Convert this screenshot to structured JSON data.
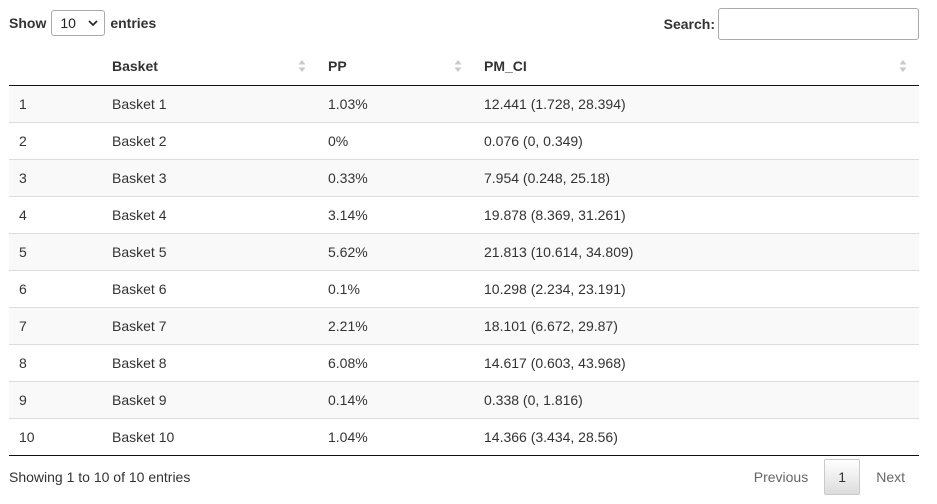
{
  "length_control": {
    "show_label": "Show",
    "selected": "10",
    "entries_label": "entries"
  },
  "search": {
    "label": "Search:",
    "value": "",
    "placeholder": ""
  },
  "table": {
    "columns": [
      "",
      "Basket",
      "PP",
      "PM_CI"
    ],
    "rows": [
      [
        "1",
        "Basket 1",
        "1.03%",
        "12.441 (1.728, 28.394)"
      ],
      [
        "2",
        "Basket 2",
        "0%",
        "0.076 (0, 0.349)"
      ],
      [
        "3",
        "Basket 3",
        "0.33%",
        "7.954 (0.248, 25.18)"
      ],
      [
        "4",
        "Basket 4",
        "3.14%",
        "19.878 (8.369, 31.261)"
      ],
      [
        "5",
        "Basket 5",
        "5.62%",
        "21.813 (10.614, 34.809)"
      ],
      [
        "6",
        "Basket 6",
        "0.1%",
        "10.298 (2.234, 23.191)"
      ],
      [
        "7",
        "Basket 7",
        "2.21%",
        "18.101 (6.672, 29.87)"
      ],
      [
        "8",
        "Basket 8",
        "6.08%",
        "14.617 (0.603, 43.968)"
      ],
      [
        "9",
        "Basket 9",
        "0.14%",
        "0.338 (0, 1.816)"
      ],
      [
        "10",
        "Basket 10",
        "1.04%",
        "14.366 (3.434, 28.56)"
      ]
    ]
  },
  "footer": {
    "info": "Showing 1 to 10 of 10 entries",
    "previous_label": "Previous",
    "current_page": "1",
    "next_label": "Next"
  },
  "icons": {
    "sort": "sort-both-icon",
    "dropdown": "chevron-down-icon"
  },
  "colors": {
    "header_border": "#111111",
    "stripe": "#f9f9f9",
    "row_border": "#dddddd"
  }
}
